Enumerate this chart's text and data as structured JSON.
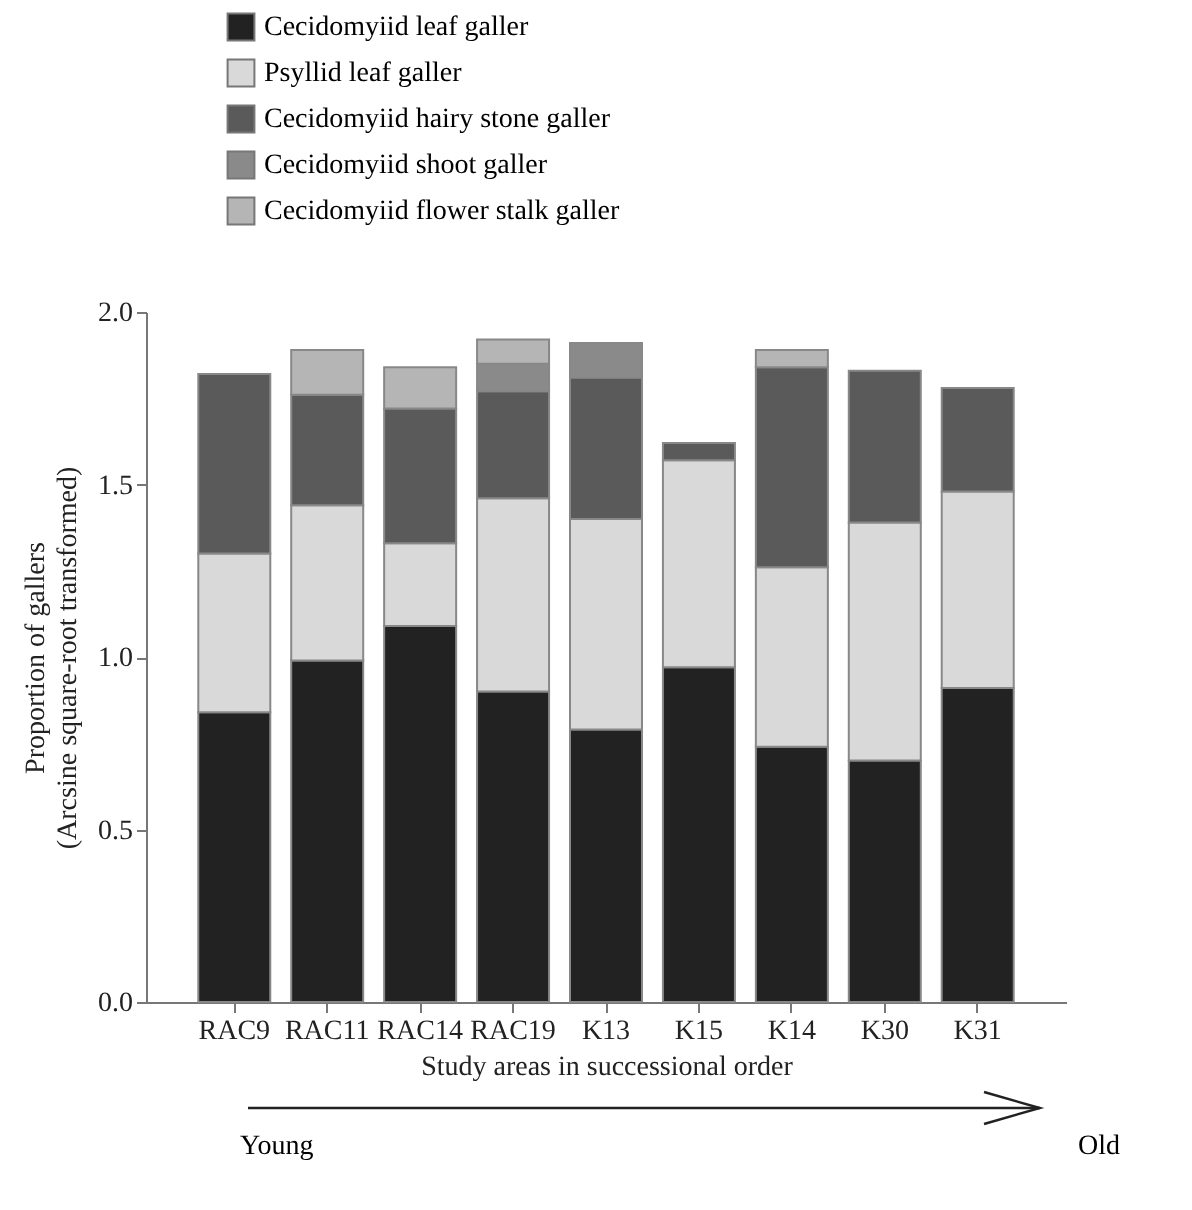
{
  "chart_data": {
    "type": "bar",
    "stacked": true,
    "xlabel": "Study areas in successional order",
    "ylabel": "Proportion of gallers\n(Arcsine square-root transformed)",
    "categories": [
      "RAC9",
      "RAC11",
      "RAC14",
      "RAC19",
      "K13",
      "K15",
      "K14",
      "K30",
      "K31"
    ],
    "series": [
      {
        "name": "Cecidomyiid leaf galler",
        "color": "#222222",
        "values": [
          0.84,
          0.99,
          1.09,
          0.9,
          0.79,
          0.97,
          0.74,
          0.7,
          0.91
        ]
      },
      {
        "name": "Psyllid leaf galler",
        "color": "#d9d9d9",
        "values": [
          0.46,
          0.45,
          0.24,
          0.56,
          0.61,
          0.6,
          0.52,
          0.69,
          0.57
        ]
      },
      {
        "name": "Cecidomyiid hairy stone galler",
        "color": "#5a5a5a",
        "values": [
          0.52,
          0.32,
          0.39,
          0.31,
          0.41,
          0.05,
          0.58,
          0.44,
          0.3
        ]
      },
      {
        "name": "Cecidomyiid shoot galler",
        "color": "#8a8a8a",
        "values": [
          null,
          null,
          null,
          0.08,
          0.1,
          null,
          null,
          null,
          null
        ]
      },
      {
        "name": "Cecidomyiid flower stalk galler",
        "color": "#b5b5b5",
        "values": [
          null,
          0.13,
          0.12,
          0.07,
          null,
          null,
          0.05,
          null,
          null
        ]
      }
    ],
    "ylim": [
      0,
      2
    ],
    "yticks": [
      {
        "value": 0,
        "label": "0.0"
      },
      {
        "value": 0.5,
        "label": "0.5"
      },
      {
        "value": 1,
        "label": "1.0"
      },
      {
        "value": 1.5,
        "label": "1.5"
      },
      {
        "value": 2,
        "label": "2.0"
      }
    ],
    "grid": false,
    "legend": "top left",
    "annotations": [
      "Young",
      "Old"
    ]
  }
}
